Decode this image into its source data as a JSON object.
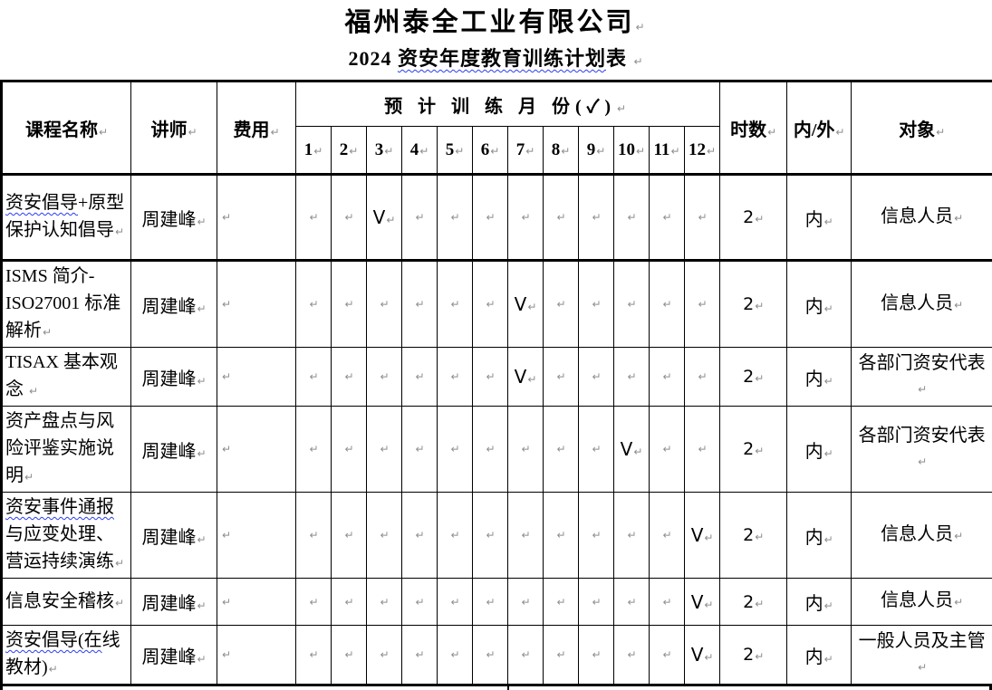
{
  "titles": {
    "company": "福州泰全工业有限公司",
    "subtitle_parts": [
      {
        "text": "2024 ",
        "wavy": false
      },
      {
        "text": "资安年度教育训练计划",
        "wavy": true
      },
      {
        "text": "表 ",
        "wavy": false
      }
    ]
  },
  "icons": {
    "paragraph_mark": "↵"
  },
  "colors": {
    "wavy_underline": "#2b3cf0",
    "paragraph_mark_gray": "#8e8e8e",
    "table_border": "#000000"
  },
  "table": {
    "headers": {
      "course": "课程名称",
      "lecturer": "讲师",
      "fee": "费用",
      "months_group": "预 计 训 练 月 份(✓)",
      "months": [
        "1",
        "2",
        "3",
        "4",
        "5",
        "6",
        "7",
        "8",
        "9",
        "10",
        "11",
        "12"
      ],
      "hours": "时数",
      "in_out": "内/外",
      "audience": "对象"
    },
    "rows": [
      {
        "course_parts": [
          {
            "text": "资安倡导",
            "wavy": true
          },
          {
            "text": "+原型保护认知倡导",
            "wavy": false
          }
        ],
        "lecturer": "周建峰",
        "fee": "",
        "months": [
          "",
          "",
          "V",
          "",
          "",
          "",
          "",
          "",
          "",
          "",
          "",
          ""
        ],
        "hours": "2",
        "in_out": "内",
        "audience": "信息人员"
      },
      {
        "course_parts": [
          {
            "text": "ISMS 简介-ISO27001 标准解析",
            "wavy": false
          }
        ],
        "lecturer": "周建峰",
        "fee": "",
        "months": [
          "",
          "",
          "",
          "",
          "",
          "",
          "V",
          "",
          "",
          "",
          "",
          ""
        ],
        "hours": "2",
        "in_out": "内",
        "audience": "信息人员"
      },
      {
        "course_parts": [
          {
            "text": "TISAX 基本观念 ",
            "wavy": false
          }
        ],
        "lecturer": "周建峰",
        "fee": "",
        "months": [
          "",
          "",
          "",
          "",
          "",
          "",
          "V",
          "",
          "",
          "",
          "",
          ""
        ],
        "hours": "2",
        "in_out": "内",
        "audience": "各部门资安代表"
      },
      {
        "course_parts": [
          {
            "text": "资产盘点与风险评鉴实施说明",
            "wavy": false
          }
        ],
        "lecturer": "周建峰",
        "fee": "",
        "months": [
          "",
          "",
          "",
          "",
          "",
          "",
          "",
          "",
          "",
          "V",
          "",
          ""
        ],
        "hours": "2",
        "in_out": "内",
        "audience": "各部门资安代表"
      },
      {
        "course_parts": [
          {
            "text": "资安事件通报",
            "wavy": true
          },
          {
            "text": "与应变处理、营运持续演练",
            "wavy": false
          }
        ],
        "lecturer": "周建峰",
        "fee": "",
        "months": [
          "",
          "",
          "",
          "",
          "",
          "",
          "",
          "",
          "",
          "",
          "",
          "V"
        ],
        "hours": "2",
        "in_out": "内",
        "audience": "信息人员"
      },
      {
        "course_parts": [
          {
            "text": "信息安全稽核",
            "wavy": false
          }
        ],
        "lecturer": "周建峰",
        "fee": "",
        "months": [
          "",
          "",
          "",
          "",
          "",
          "",
          "",
          "",
          "",
          "",
          "",
          "V"
        ],
        "hours": "2",
        "in_out": "内",
        "audience": "信息人员"
      },
      {
        "course_parts": [
          {
            "text": "资安倡导(在",
            "wavy": true
          },
          {
            "text": "线教材)",
            "wavy": false
          }
        ],
        "lecturer": "周建峰",
        "fee": "",
        "months": [
          "",
          "",
          "",
          "",
          "",
          "",
          "",
          "",
          "",
          "",
          "",
          "V"
        ],
        "hours": "2",
        "in_out": "内",
        "audience": "一般人员及主管"
      }
    ]
  }
}
